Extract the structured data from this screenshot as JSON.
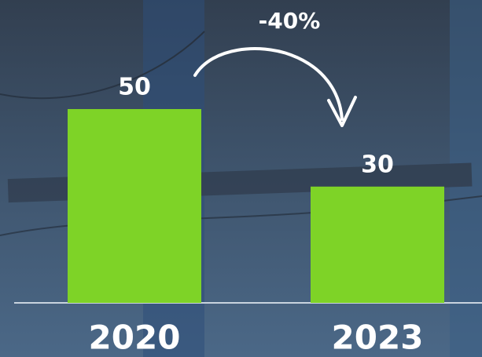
{
  "chart_data": {
    "type": "bar",
    "categories": [
      "2020",
      "2023"
    ],
    "values": [
      50,
      30
    ],
    "color": "#7ed327",
    "annotation": "-40%"
  }
}
